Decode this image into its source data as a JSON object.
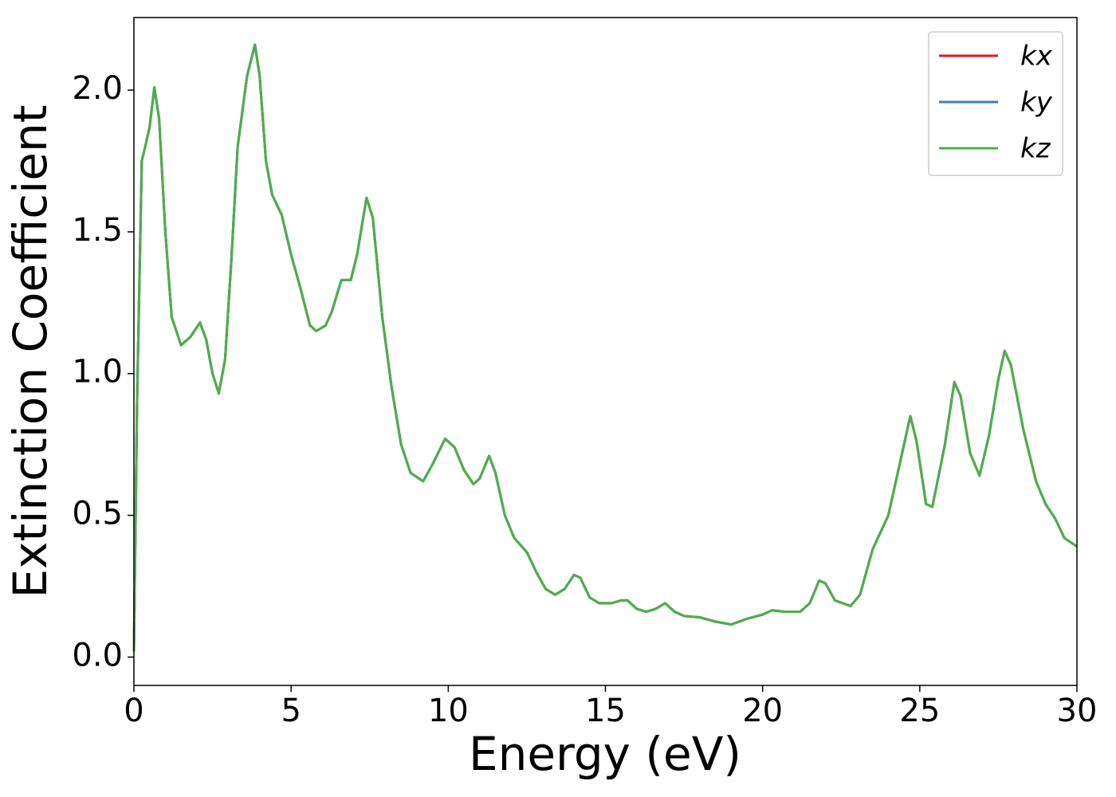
{
  "chart_data": {
    "type": "line",
    "xlabel": "Energy (eV)",
    "ylabel": "Extinction Coefficient",
    "x": [
      0,
      0.1,
      0.25,
      0.4,
      0.5,
      0.65,
      0.8,
      1.0,
      1.2,
      1.5,
      1.8,
      2.1,
      2.3,
      2.5,
      2.7,
      2.9,
      3.1,
      3.3,
      3.6,
      3.85,
      4.0,
      4.2,
      4.4,
      4.7,
      5.0,
      5.3,
      5.6,
      5.8,
      6.1,
      6.3,
      6.6,
      6.9,
      7.1,
      7.4,
      7.6,
      7.9,
      8.2,
      8.5,
      8.8,
      9.2,
      9.5,
      9.9,
      10.2,
      10.5,
      10.8,
      11.0,
      11.3,
      11.5,
      11.8,
      12.1,
      12.5,
      12.8,
      13.1,
      13.4,
      13.7,
      14.0,
      14.2,
      14.5,
      14.8,
      15.2,
      15.5,
      15.7,
      16.0,
      16.3,
      16.6,
      16.9,
      17.2,
      17.5,
      18.0,
      18.5,
      19.0,
      19.5,
      20.0,
      20.3,
      20.7,
      21.2,
      21.5,
      21.8,
      22.0,
      22.3,
      22.8,
      23.1,
      23.5,
      24.0,
      24.3,
      24.7,
      24.9,
      25.2,
      25.4,
      25.8,
      26.1,
      26.3,
      26.6,
      26.9,
      27.2,
      27.5,
      27.7,
      27.9,
      28.3,
      28.7,
      29.0,
      29.3,
      29.6,
      30.0
    ],
    "series": [
      {
        "name": "kx",
        "color": "#e41a1c",
        "values": [
          0.02,
          0.9,
          1.75,
          1.82,
          1.87,
          2.01,
          1.9,
          1.5,
          1.2,
          1.1,
          1.13,
          1.18,
          1.12,
          1.0,
          0.93,
          1.05,
          1.4,
          1.8,
          2.05,
          2.16,
          2.05,
          1.75,
          1.63,
          1.56,
          1.42,
          1.3,
          1.17,
          1.15,
          1.17,
          1.22,
          1.33,
          1.33,
          1.42,
          1.62,
          1.55,
          1.2,
          0.95,
          0.75,
          0.65,
          0.62,
          0.68,
          0.77,
          0.74,
          0.66,
          0.61,
          0.63,
          0.71,
          0.65,
          0.5,
          0.42,
          0.37,
          0.3,
          0.24,
          0.22,
          0.24,
          0.29,
          0.28,
          0.21,
          0.19,
          0.19,
          0.2,
          0.2,
          0.17,
          0.16,
          0.17,
          0.19,
          0.16,
          0.145,
          0.14,
          0.125,
          0.115,
          0.135,
          0.15,
          0.165,
          0.16,
          0.16,
          0.19,
          0.27,
          0.26,
          0.2,
          0.18,
          0.22,
          0.38,
          0.5,
          0.65,
          0.85,
          0.76,
          0.54,
          0.53,
          0.75,
          0.97,
          0.92,
          0.72,
          0.64,
          0.78,
          0.98,
          1.08,
          1.03,
          0.8,
          0.62,
          0.54,
          0.49,
          0.42,
          0.39
        ]
      },
      {
        "name": "ky",
        "color": "#377eb8",
        "values": [
          0.02,
          0.9,
          1.75,
          1.82,
          1.87,
          2.01,
          1.9,
          1.5,
          1.2,
          1.1,
          1.13,
          1.18,
          1.12,
          1.0,
          0.93,
          1.05,
          1.4,
          1.8,
          2.05,
          2.16,
          2.05,
          1.75,
          1.63,
          1.56,
          1.42,
          1.3,
          1.17,
          1.15,
          1.17,
          1.22,
          1.33,
          1.33,
          1.42,
          1.62,
          1.55,
          1.2,
          0.95,
          0.75,
          0.65,
          0.62,
          0.68,
          0.77,
          0.74,
          0.66,
          0.61,
          0.63,
          0.71,
          0.65,
          0.5,
          0.42,
          0.37,
          0.3,
          0.24,
          0.22,
          0.24,
          0.29,
          0.28,
          0.21,
          0.19,
          0.19,
          0.2,
          0.2,
          0.17,
          0.16,
          0.17,
          0.19,
          0.16,
          0.145,
          0.14,
          0.125,
          0.115,
          0.135,
          0.15,
          0.165,
          0.16,
          0.16,
          0.19,
          0.27,
          0.26,
          0.2,
          0.18,
          0.22,
          0.38,
          0.5,
          0.65,
          0.85,
          0.76,
          0.54,
          0.53,
          0.75,
          0.97,
          0.92,
          0.72,
          0.64,
          0.78,
          0.98,
          1.08,
          1.03,
          0.8,
          0.62,
          0.54,
          0.49,
          0.42,
          0.39
        ]
      },
      {
        "name": "kz",
        "color": "#4daf4a",
        "values": [
          0.02,
          0.9,
          1.75,
          1.82,
          1.87,
          2.01,
          1.9,
          1.5,
          1.2,
          1.1,
          1.13,
          1.18,
          1.12,
          1.0,
          0.93,
          1.05,
          1.4,
          1.8,
          2.05,
          2.16,
          2.05,
          1.75,
          1.63,
          1.56,
          1.42,
          1.3,
          1.17,
          1.15,
          1.17,
          1.22,
          1.33,
          1.33,
          1.42,
          1.62,
          1.55,
          1.2,
          0.95,
          0.75,
          0.65,
          0.62,
          0.68,
          0.77,
          0.74,
          0.66,
          0.61,
          0.63,
          0.71,
          0.65,
          0.5,
          0.42,
          0.37,
          0.3,
          0.24,
          0.22,
          0.24,
          0.29,
          0.28,
          0.21,
          0.19,
          0.19,
          0.2,
          0.2,
          0.17,
          0.16,
          0.17,
          0.19,
          0.16,
          0.145,
          0.14,
          0.125,
          0.115,
          0.135,
          0.15,
          0.165,
          0.16,
          0.16,
          0.19,
          0.27,
          0.26,
          0.2,
          0.18,
          0.22,
          0.38,
          0.5,
          0.65,
          0.85,
          0.76,
          0.54,
          0.53,
          0.75,
          0.97,
          0.92,
          0.72,
          0.64,
          0.78,
          0.98,
          1.08,
          1.03,
          0.8,
          0.62,
          0.54,
          0.49,
          0.42,
          0.39
        ]
      }
    ],
    "xlim": [
      0,
      30
    ],
    "xticks": [
      0,
      5,
      10,
      15,
      20,
      25,
      30
    ],
    "ylim": [
      -0.1,
      2.256
    ],
    "yticks": [
      {
        "value": 0,
        "label": "0.0"
      },
      {
        "value": 0.5,
        "label": "0.5"
      },
      {
        "value": 1,
        "label": "1.0"
      },
      {
        "value": 1.5,
        "label": "1.5"
      },
      {
        "value": 2,
        "label": "2.0"
      }
    ],
    "grid": false,
    "legend": "upper right"
  }
}
